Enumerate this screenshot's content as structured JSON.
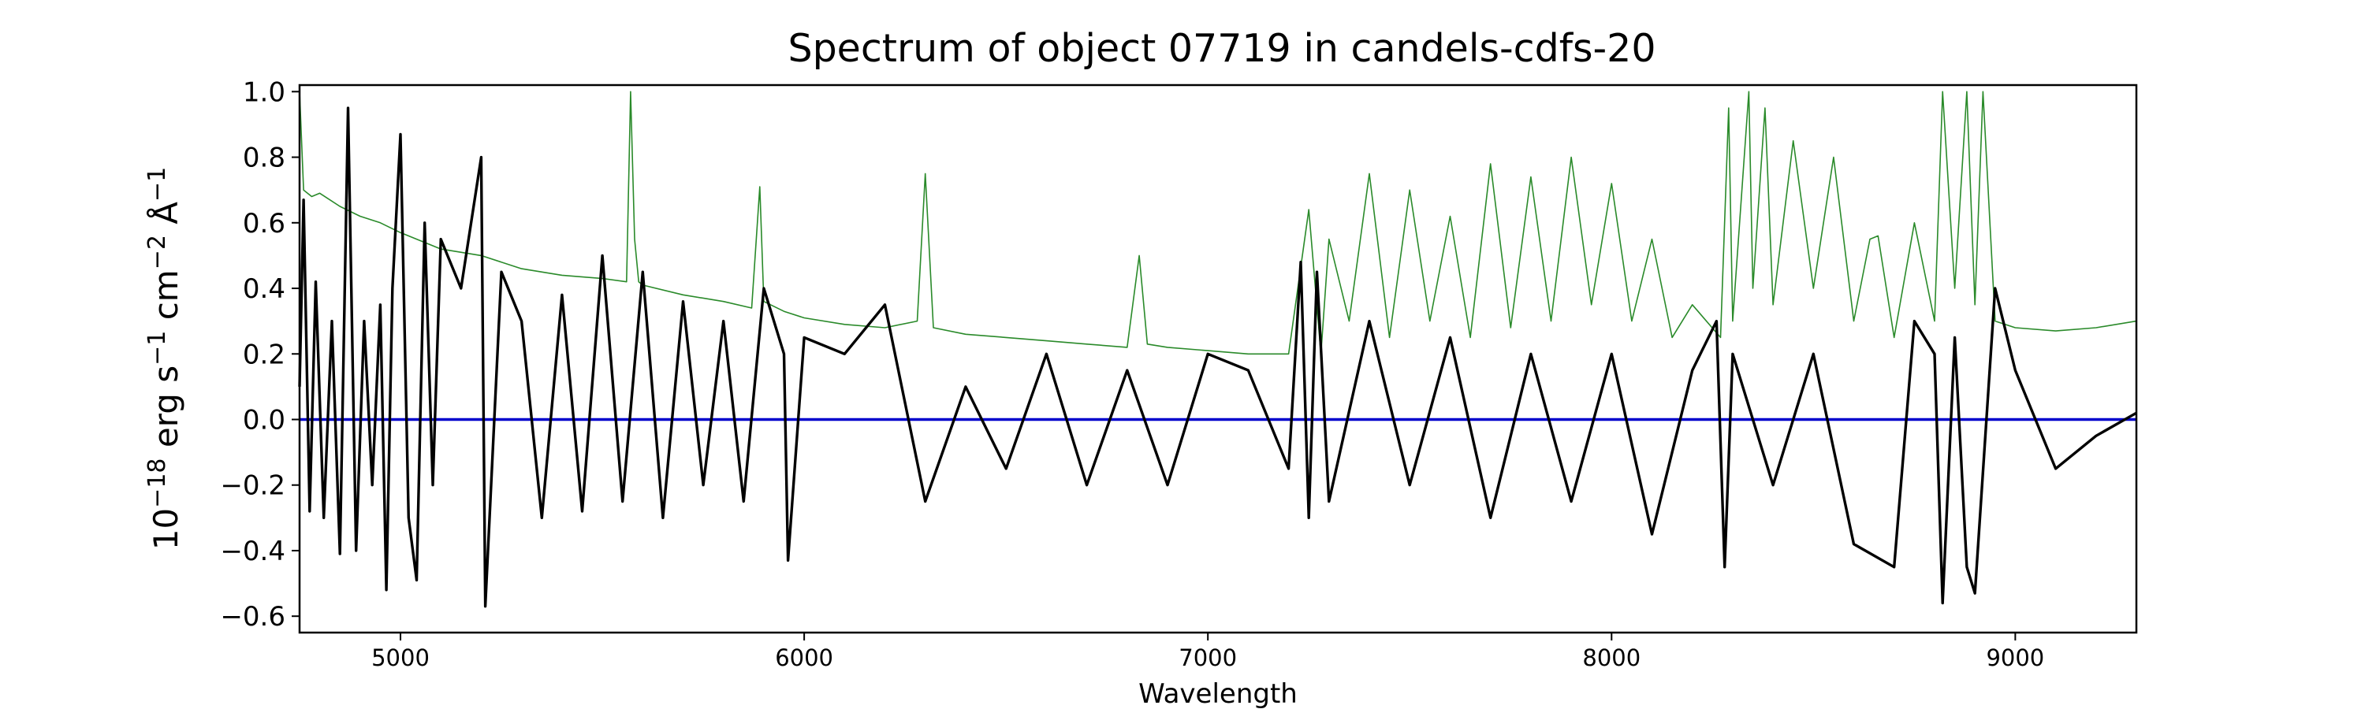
{
  "chart_data": {
    "type": "line",
    "title": "Spectrum of object 07719 in candels-cdfs-20",
    "xlabel": "Wavelength",
    "ylabel_parts": [
      "10",
      "−18",
      " erg s",
      "−1",
      " cm",
      "−2",
      " Å",
      "−1"
    ],
    "xlim": [
      4750,
      9300
    ],
    "ylim": [
      -0.65,
      1.02
    ],
    "xticks": [
      5000,
      6000,
      7000,
      8000,
      9000
    ],
    "xtick_labels": [
      "5000",
      "6000",
      "7000",
      "8000",
      "9000"
    ],
    "yticks": [
      -0.6,
      -0.4,
      -0.2,
      0.0,
      0.2,
      0.4,
      0.6,
      0.8,
      1.0
    ],
    "ytick_labels": [
      "−0.6",
      "−0.4",
      "−0.2",
      "0.0",
      "0.2",
      "0.4",
      "0.6",
      "0.8",
      "1.0"
    ],
    "grid": false,
    "legend": "none",
    "series": [
      {
        "role": "noise (error spectrum)",
        "color": "#2a8a2a",
        "x": [
          4750,
          4760,
          4780,
          4800,
          4850,
          4900,
          4950,
          5000,
          5100,
          5200,
          5300,
          5400,
          5500,
          5560,
          5570,
          5580,
          5590,
          5600,
          5700,
          5800,
          5870,
          5890,
          5900,
          5950,
          6000,
          6100,
          6200,
          6280,
          6300,
          6320,
          6400,
          6500,
          6600,
          6700,
          6800,
          6830,
          6850,
          6900,
          7000,
          7100,
          7200,
          7250,
          7280,
          7300,
          7350,
          7400,
          7450,
          7500,
          7550,
          7600,
          7650,
          7700,
          7750,
          7800,
          7850,
          7900,
          7950,
          8000,
          8050,
          8100,
          8150,
          8200,
          8270,
          8290,
          8300,
          8340,
          8350,
          8380,
          8400,
          8450,
          8500,
          8550,
          8600,
          8640,
          8660,
          8700,
          8750,
          8800,
          8820,
          8850,
          8880,
          8900,
          8920,
          8950,
          9000,
          9100,
          9200,
          9300
        ],
        "y": [
          1.0,
          0.7,
          0.68,
          0.69,
          0.65,
          0.62,
          0.6,
          0.57,
          0.52,
          0.5,
          0.46,
          0.44,
          0.43,
          0.42,
          1.0,
          0.55,
          0.42,
          0.41,
          0.38,
          0.36,
          0.34,
          0.71,
          0.36,
          0.33,
          0.31,
          0.29,
          0.28,
          0.3,
          0.75,
          0.28,
          0.26,
          0.25,
          0.24,
          0.23,
          0.22,
          0.5,
          0.23,
          0.22,
          0.21,
          0.2,
          0.2,
          0.64,
          0.2,
          0.55,
          0.3,
          0.75,
          0.25,
          0.7,
          0.3,
          0.62,
          0.25,
          0.78,
          0.28,
          0.74,
          0.3,
          0.8,
          0.35,
          0.72,
          0.3,
          0.55,
          0.25,
          0.35,
          0.25,
          0.95,
          0.3,
          1.0,
          0.4,
          0.95,
          0.35,
          0.85,
          0.4,
          0.8,
          0.3,
          0.55,
          0.56,
          0.25,
          0.6,
          0.3,
          1.0,
          0.4,
          1.0,
          0.35,
          1.0,
          0.3,
          0.28,
          0.27,
          0.28,
          0.3
        ]
      },
      {
        "role": "flux",
        "color": "#000000",
        "x": [
          4750,
          4760,
          4775,
          4790,
          4810,
          4830,
          4850,
          4870,
          4890,
          4910,
          4930,
          4950,
          4965,
          4980,
          5000,
          5020,
          5040,
          5060,
          5080,
          5100,
          5150,
          5200,
          5210,
          5250,
          5300,
          5350,
          5400,
          5450,
          5500,
          5550,
          5600,
          5650,
          5700,
          5750,
          5800,
          5850,
          5900,
          5950,
          5960,
          6000,
          6100,
          6200,
          6300,
          6400,
          6500,
          6600,
          6700,
          6800,
          6900,
          7000,
          7100,
          7200,
          7230,
          7250,
          7270,
          7300,
          7400,
          7500,
          7600,
          7700,
          7800,
          7900,
          8000,
          8100,
          8200,
          8260,
          8280,
          8300,
          8400,
          8500,
          8600,
          8700,
          8750,
          8800,
          8820,
          8850,
          8880,
          8900,
          8950,
          9000,
          9100,
          9200,
          9300
        ],
        "y": [
          0.1,
          0.67,
          -0.28,
          0.42,
          -0.3,
          0.3,
          -0.41,
          0.95,
          -0.4,
          0.3,
          -0.2,
          0.35,
          -0.52,
          0.4,
          0.87,
          -0.3,
          -0.49,
          0.6,
          -0.2,
          0.55,
          0.4,
          0.8,
          -0.57,
          0.45,
          0.3,
          -0.3,
          0.38,
          -0.28,
          0.5,
          -0.25,
          0.45,
          -0.3,
          0.36,
          -0.2,
          0.3,
          -0.25,
          0.4,
          0.2,
          -0.43,
          0.25,
          0.2,
          0.35,
          -0.25,
          0.1,
          -0.15,
          0.2,
          -0.2,
          0.15,
          -0.2,
          0.2,
          0.15,
          -0.15,
          0.48,
          -0.3,
          0.45,
          -0.25,
          0.3,
          -0.2,
          0.25,
          -0.3,
          0.2,
          -0.25,
          0.2,
          -0.35,
          0.15,
          0.3,
          -0.45,
          0.2,
          -0.2,
          0.2,
          -0.38,
          -0.45,
          0.3,
          0.2,
          -0.56,
          0.25,
          -0.45,
          -0.53,
          0.4,
          0.15,
          -0.15,
          -0.05,
          0.02
        ]
      },
      {
        "role": "zero level",
        "color": "#0000cc",
        "x": [
          4750,
          9300
        ],
        "y": [
          0.0,
          0.0
        ]
      }
    ]
  }
}
